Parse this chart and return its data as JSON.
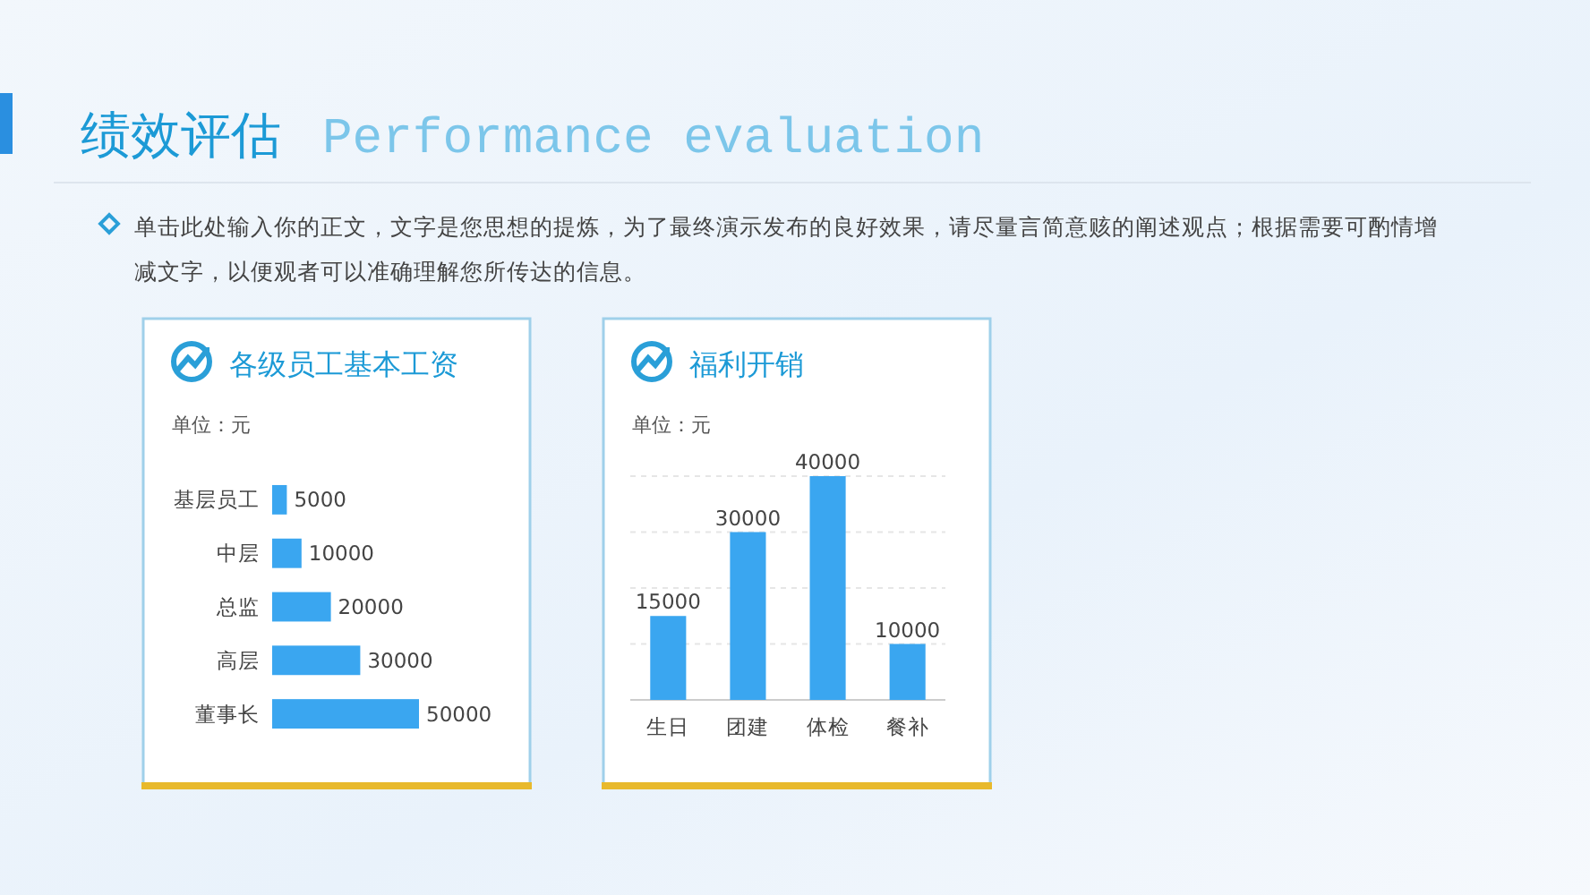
{
  "chart_data": [
    {
      "type": "other",
      "title": "绩效评估",
      "subtitle": "Performance evaluation",
      "annotations": [
        "单击此处输入你的正文，文字是您思想的提炼，为了最终演示发布的良好效果，请尽量言简意赅的阐述观点；根据需要可酌情增减文字，以便观者可以准确理解您所传达的信息。"
      ]
    },
    {
      "type": "bar",
      "orientation": "horizontal",
      "title": "各级员工基本工资",
      "subtitle": "单位：元",
      "categories": [
        "基层员工",
        "中层",
        "总监",
        "高层",
        "董事长"
      ],
      "values": [
        5000,
        10000,
        20000,
        30000,
        50000
      ],
      "color": "#3aa6f0",
      "data_labels": true,
      "tick_labels": "y"
    },
    {
      "type": "bar",
      "title": "福利开销",
      "subtitle": "单位：元",
      "categories": [
        "生日",
        "团建",
        "体检",
        "餐补"
      ],
      "values": [
        15000,
        30000,
        40000,
        10000
      ],
      "color": "#3aa6f0",
      "data_labels": true,
      "ylim": [
        0,
        40000
      ],
      "yticks": [
        {
          "value": 10000,
          "label": null
        },
        {
          "value": 20000,
          "label": null
        },
        {
          "value": 30000,
          "label": null
        },
        {
          "value": 40000,
          "label": null
        }
      ],
      "grid": "y",
      "tick_labels": "x"
    }
  ]
}
